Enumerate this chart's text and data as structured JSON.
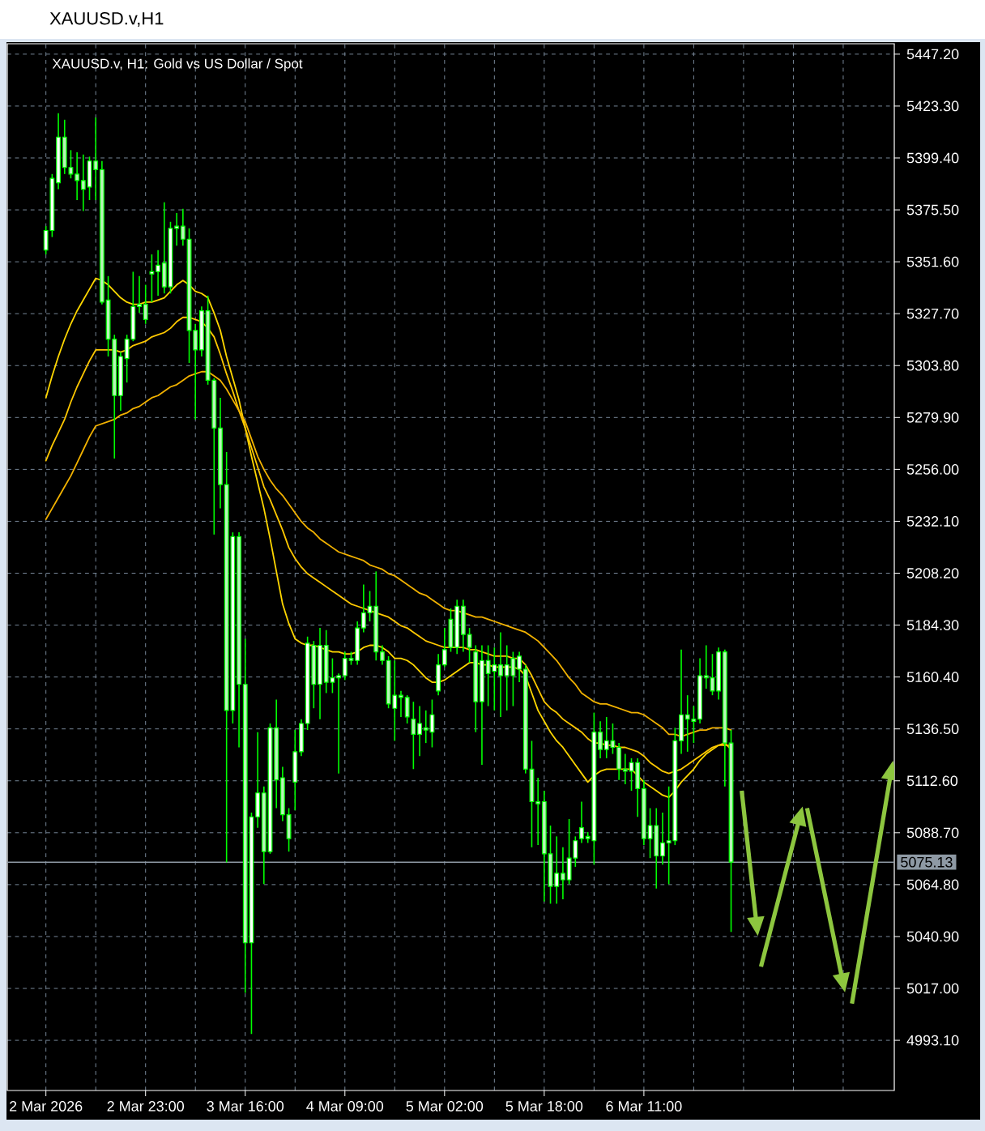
{
  "chart_data": {
    "type": "candlestick",
    "title": "XAUUSD.v,H1",
    "subtitle": "XAUUSD.v, H1:  Gold vs US Dollar / Spot",
    "color": "#00ff00",
    "categories": [
      "2 Mar 2026",
      null,
      null,
      null,
      null,
      null,
      null,
      null,
      null,
      null,
      null,
      null,
      null,
      null,
      null,
      null,
      "2 Mar 23:00",
      null,
      null,
      null,
      null,
      null,
      null,
      null,
      null,
      null,
      null,
      null,
      null,
      null,
      null,
      null,
      "3 Mar 16:00",
      null,
      null,
      null,
      null,
      null,
      null,
      null,
      null,
      null,
      null,
      null,
      null,
      null,
      null,
      null,
      "4 Mar 09:00",
      null,
      null,
      null,
      null,
      null,
      null,
      null,
      null,
      null,
      null,
      null,
      null,
      null,
      null,
      null,
      "5 Mar 02:00",
      null,
      null,
      null,
      null,
      null,
      null,
      null,
      null,
      null,
      null,
      null,
      null,
      null,
      null,
      null,
      "5 Mar 18:00",
      null,
      null,
      null,
      null,
      null,
      null,
      null,
      null,
      null,
      null,
      null,
      null,
      null,
      null,
      null,
      "6 Mar 11:00",
      null,
      null,
      null,
      null,
      null,
      null,
      null,
      null,
      null,
      null,
      null,
      null,
      null,
      null
    ],
    "ohlc": [
      [
        5357,
        5368,
        5355,
        5366
      ],
      [
        5366,
        5392,
        5363,
        5390
      ],
      [
        5388,
        5420,
        5385,
        5409
      ],
      [
        5409,
        5417,
        5392,
        5395
      ],
      [
        5395,
        5403,
        5390,
        5392
      ],
      [
        5392,
        5402,
        5380,
        5389
      ],
      [
        5389,
        5401,
        5375,
        5385
      ],
      [
        5386,
        5400,
        5380,
        5398
      ],
      [
        5398,
        5418,
        5380,
        5394
      ],
      [
        5394,
        5398,
        5332,
        5333
      ],
      [
        5334,
        5345,
        5308,
        5316
      ],
      [
        5316,
        5318,
        5261,
        5290
      ],
      [
        5290,
        5310,
        5283,
        5308
      ],
      [
        5307,
        5318,
        5296,
        5316
      ],
      [
        5316,
        5347,
        5315,
        5331
      ],
      [
        5331,
        5345,
        5328,
        5332
      ],
      [
        5332,
        5341,
        5323,
        5325
      ],
      [
        5346,
        5355,
        5333,
        5347
      ],
      [
        5347,
        5357,
        5336,
        5350
      ],
      [
        5351,
        5379,
        5337,
        5340
      ],
      [
        5340,
        5370,
        5337,
        5367
      ],
      [
        5367,
        5374,
        5359,
        5368
      ],
      [
        5368,
        5376,
        5359,
        5362
      ],
      [
        5362,
        5367,
        5305,
        5320
      ],
      [
        5320,
        5323,
        5279,
        5311
      ],
      [
        5311,
        5331,
        5308,
        5329
      ],
      [
        5329,
        5336,
        5295,
        5297
      ],
      [
        5297,
        5298,
        5226,
        5275
      ],
      [
        5275,
        5289,
        5238,
        5249
      ],
      [
        5249,
        5264,
        5075,
        5145
      ],
      [
        5145,
        5227,
        5139,
        5225
      ],
      [
        5225,
        5227,
        5128,
        5157
      ],
      [
        5157,
        5178,
        5015,
        5038
      ],
      [
        5038,
        5098,
        4996,
        5096
      ],
      [
        5096,
        5135,
        5091,
        5107
      ],
      [
        5107,
        5110,
        5065,
        5080
      ],
      [
        5080,
        5139,
        5079,
        5137
      ],
      [
        5137,
        5150,
        5100,
        5113
      ],
      [
        5114,
        5119,
        5094,
        5097
      ],
      [
        5097,
        5100,
        5080,
        5086
      ],
      [
        5112,
        5136,
        5099,
        5126
      ],
      [
        5126,
        5141,
        5124,
        5139
      ],
      [
        5139,
        5179,
        5136,
        5176
      ],
      [
        5175,
        5177,
        5146,
        5157
      ],
      [
        5157,
        5183,
        5141,
        5175
      ],
      [
        5175,
        5182,
        5153,
        5158
      ],
      [
        5158,
        5169,
        5153,
        5160
      ],
      [
        5160,
        5162,
        5116,
        5161
      ],
      [
        5161,
        5172,
        5159,
        5169
      ],
      [
        5169,
        5172,
        5166,
        5168
      ],
      [
        5168,
        5186,
        5166,
        5183
      ],
      [
        5183,
        5203,
        5181,
        5190
      ],
      [
        5190,
        5200,
        5186,
        5193
      ],
      [
        5193,
        5209,
        5168,
        5172
      ],
      [
        5172,
        5175,
        5166,
        5168
      ],
      [
        5168,
        5170,
        5146,
        5148
      ],
      [
        5146,
        5168,
        5131,
        5152
      ],
      [
        5152,
        5154,
        5142,
        5151
      ],
      [
        5151,
        5152,
        5139,
        5142
      ],
      [
        5141,
        5149,
        5118,
        5134
      ],
      [
        5134,
        5147,
        5124,
        5139
      ],
      [
        5137,
        5145,
        5130,
        5136
      ],
      [
        5135,
        5150,
        5128,
        5143
      ],
      [
        5154,
        5171,
        5152,
        5166
      ],
      [
        5166,
        5183,
        5165,
        5173
      ],
      [
        5187,
        5192,
        5172,
        5174
      ],
      [
        5174,
        5196,
        5171,
        5193
      ],
      [
        5193,
        5196,
        5172,
        5180
      ],
      [
        5180,
        5183,
        5167,
        5174
      ],
      [
        5172,
        5175,
        5135,
        5149
      ],
      [
        5149,
        5175,
        5120,
        5168
      ],
      [
        5168,
        5175,
        5147,
        5162
      ],
      [
        5163,
        5174,
        5145,
        5166
      ],
      [
        5166,
        5181,
        5142,
        5161
      ],
      [
        5161,
        5175,
        5145,
        5166
      ],
      [
        5169,
        5172,
        5147,
        5161
      ],
      [
        5164,
        5172,
        5158,
        5170
      ],
      [
        5164,
        5166,
        5116,
        5118
      ],
      [
        5118,
        5131,
        5082,
        5103
      ],
      [
        5103,
        5114,
        5083,
        5102
      ],
      [
        5103,
        5108,
        5057,
        5079
      ],
      [
        5079,
        5092,
        5056,
        5064
      ],
      [
        5064,
        5087,
        5056,
        5070
      ],
      [
        5070,
        5082,
        5058,
        5067
      ],
      [
        5067,
        5095,
        5065,
        5077
      ],
      [
        5077,
        5087,
        5073,
        5085
      ],
      [
        5086,
        5103,
        5084,
        5091
      ],
      [
        5087,
        5089,
        5084,
        5086
      ],
      [
        5085,
        5144,
        5074,
        5135
      ],
      [
        5135,
        5140,
        5123,
        5127
      ],
      [
        5127,
        5142,
        5123,
        5131
      ],
      [
        5131,
        5139,
        5125,
        5128
      ],
      [
        5128,
        5130,
        5113,
        5118
      ],
      [
        5118,
        5125,
        5111,
        5117
      ],
      [
        5117,
        5123,
        5108,
        5121
      ],
      [
        5121,
        5123,
        5096,
        5109
      ],
      [
        5109,
        5113,
        5083,
        5086
      ],
      [
        5086,
        5100,
        5077,
        5092
      ],
      [
        5092,
        5100,
        5063,
        5078
      ],
      [
        5078,
        5098,
        5074,
        5084
      ],
      [
        5084,
        5110,
        5065,
        5085
      ],
      [
        5085,
        5137,
        5083,
        5131
      ],
      [
        5131,
        5173,
        5125,
        5143
      ],
      [
        5143,
        5152,
        5126,
        5141
      ],
      [
        5141,
        5147,
        5130,
        5140
      ],
      [
        5141,
        5169,
        5139,
        5161
      ],
      [
        5161,
        5175,
        5155,
        5160
      ],
      [
        5160,
        5171,
        5152,
        5154
      ],
      [
        5154,
        5174,
        5150,
        5172
      ],
      [
        5172,
        5173,
        5110,
        5130
      ],
      [
        5130,
        5136,
        5043,
        5075.13
      ]
    ],
    "series": [
      {
        "type": "line",
        "color": "#ffd700",
        "values": [
          5289,
          5299,
          5308,
          5316,
          5323,
          5329,
          5334,
          5339,
          5344,
          5343,
          5341,
          5338,
          5335,
          5333,
          5332,
          5332,
          5333,
          5333,
          5334,
          5335,
          5338,
          5341,
          5343,
          5341,
          5338,
          5337,
          5335,
          5328,
          5320,
          5308,
          5298,
          5288,
          5275,
          5262,
          5250,
          5238,
          5224,
          5209,
          5194,
          5185,
          5178,
          5176,
          5175,
          5175,
          5174,
          5173,
          5172,
          5172,
          5171,
          5171,
          5172,
          5174,
          5175,
          5175,
          5174,
          5172,
          5169,
          5169,
          5168,
          5166,
          5163,
          5160,
          5158,
          5158,
          5159,
          5161,
          5163,
          5165,
          5167,
          5167,
          5166,
          5166,
          5165,
          5165,
          5165,
          5165,
          5164,
          5161,
          5153,
          5145,
          5140,
          5135,
          5131,
          5128,
          5124,
          5120,
          5116,
          5112,
          5115,
          5117,
          5118,
          5118,
          5118,
          5118,
          5118,
          5115,
          5112,
          5110,
          5108,
          5106,
          5105,
          5108,
          5112,
          5115,
          5118,
          5122,
          5125,
          5127,
          5129,
          5130,
          5127
        ]
      },
      {
        "type": "line",
        "color": "#ffc800",
        "values": [
          5260,
          5267,
          5273,
          5279,
          5287,
          5294,
          5300,
          5306,
          5311,
          5311,
          5311,
          5311,
          5310,
          5311,
          5313,
          5314,
          5315,
          5317,
          5318,
          5319,
          5321,
          5324,
          5326,
          5326,
          5325,
          5324,
          5321,
          5317,
          5309,
          5300,
          5292,
          5283,
          5275,
          5266,
          5257,
          5248,
          5242,
          5235,
          5228,
          5220,
          5215,
          5211,
          5208,
          5206,
          5204,
          5202,
          5200,
          5198,
          5196,
          5194,
          5193,
          5192,
          5191,
          5190,
          5189,
          5188,
          5186,
          5184,
          5183,
          5181,
          5179,
          5177,
          5176,
          5175,
          5174,
          5174,
          5174,
          5174,
          5173,
          5173,
          5172,
          5171,
          5170,
          5170,
          5170,
          5169,
          5169,
          5166,
          5161,
          5155,
          5149,
          5146,
          5144,
          5141,
          5139,
          5137,
          5135,
          5132,
          5130,
          5130,
          5129,
          5129,
          5128,
          5128,
          5127,
          5126,
          5124,
          5121,
          5119,
          5117,
          5116,
          5117,
          5118,
          5120,
          5122,
          5124,
          5126,
          5128,
          5129,
          5129,
          5129
        ]
      },
      {
        "type": "line",
        "color": "#f2b200",
        "values": [
          5233,
          5238,
          5243,
          5248,
          5253,
          5259,
          5265,
          5271,
          5276,
          5277,
          5278,
          5279,
          5281,
          5282,
          5284,
          5285,
          5287,
          5289,
          5290,
          5292,
          5294,
          5295,
          5297,
          5299,
          5300,
          5301,
          5301,
          5299,
          5297,
          5293,
          5288,
          5283,
          5278,
          5270,
          5262,
          5256,
          5251,
          5247,
          5244,
          5240,
          5236,
          5232,
          5229,
          5227,
          5224,
          5222,
          5220,
          5218,
          5217,
          5216,
          5215,
          5214,
          5212,
          5211,
          5210,
          5208,
          5207,
          5205,
          5203,
          5201,
          5199,
          5198,
          5196,
          5194,
          5192,
          5191,
          5191,
          5190,
          5189,
          5188,
          5188,
          5187,
          5186,
          5185,
          5184,
          5183,
          5182,
          5181,
          5179,
          5177,
          5174,
          5171,
          5168,
          5164,
          5160,
          5157,
          5153,
          5151,
          5149,
          5148,
          5148,
          5147,
          5146,
          5145,
          5144,
          5144,
          5143,
          5141,
          5139,
          5137,
          5134,
          5134,
          5133,
          5134,
          5135,
          5136,
          5136,
          5137,
          5137,
          5137,
          5136
        ]
      }
    ],
    "ref_lines": [
      {
        "axis": "y",
        "value": 5075.13,
        "label": "5075.13",
        "color": "#8e99a4"
      }
    ],
    "ylim": [
      4970,
      5452
    ],
    "yticks": [
      {
        "value": 4993.1,
        "label": "4993.10"
      },
      {
        "value": 5017,
        "label": "5017.00"
      },
      {
        "value": 5040.9,
        "label": "5040.90"
      },
      {
        "value": 5064.8,
        "label": "5064.80"
      },
      {
        "value": 5088.7,
        "label": "5088.70"
      },
      {
        "value": 5112.6,
        "label": "5112.60"
      },
      {
        "value": 5136.5,
        "label": "5136.50"
      },
      {
        "value": 5160.4,
        "label": "5160.40"
      },
      {
        "value": 5184.3,
        "label": "5184.30"
      },
      {
        "value": 5208.2,
        "label": "5208.20"
      },
      {
        "value": 5232.1,
        "label": "5232.10"
      },
      {
        "value": 5256,
        "label": "5256.00"
      },
      {
        "value": 5279.9,
        "label": "5279.90"
      },
      {
        "value": 5303.8,
        "label": "5303.80"
      },
      {
        "value": 5327.7,
        "label": "5327.70"
      },
      {
        "value": 5351.6,
        "label": "5351.60"
      },
      {
        "value": 5375.5,
        "label": "5375.50"
      },
      {
        "value": 5399.4,
        "label": "5399.40"
      },
      {
        "value": 5423.3,
        "label": "5423.30"
      },
      {
        "value": 5447.2,
        "label": "5447.20"
      }
    ],
    "grid": true
  }
}
